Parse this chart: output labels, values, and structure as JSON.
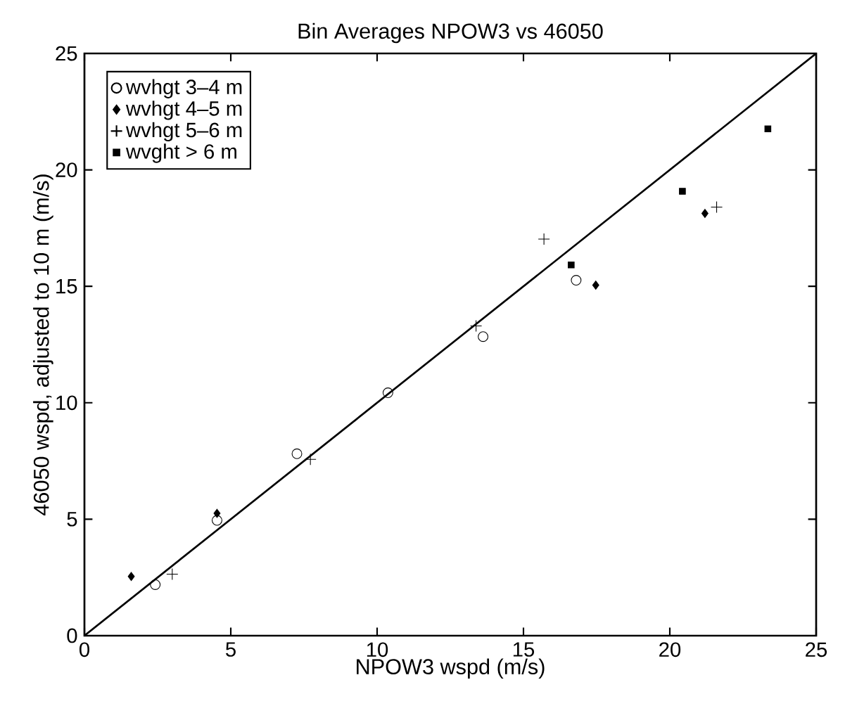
{
  "chart_data": {
    "type": "scatter",
    "title": "Bin Averages NPOW3 vs 46050",
    "xlabel": "NPOW3 wspd (m/s)",
    "ylabel": "46050 wspd, adjusted to 10 m (m/s)",
    "xlim": [
      0,
      25
    ],
    "ylim": [
      0,
      25
    ],
    "xticks": [
      0,
      5,
      10,
      15,
      20,
      25
    ],
    "yticks": [
      0,
      5,
      10,
      15,
      20,
      25
    ],
    "legend": "top left",
    "grid": false,
    "series": [
      {
        "name": "wvhgt 3–4 m",
        "color": "#000000",
        "marker": "circle",
        "x": [
          2.42,
          4.53,
          7.26,
          10.37,
          13.62,
          16.8
        ],
        "values": [
          2.19,
          4.95,
          7.81,
          10.43,
          12.84,
          15.26
        ]
      },
      {
        "name": "wvhgt 4–5 m",
        "color": "#000000",
        "marker": "diamond",
        "x": [
          1.6,
          4.53,
          17.47,
          21.2
        ],
        "values": [
          2.54,
          5.25,
          15.05,
          18.13
        ]
      },
      {
        "name": "wvhgt 5–6 m",
        "color": "#000000",
        "marker": "cross",
        "x": [
          3.0,
          7.72,
          13.38,
          15.7,
          21.6
        ],
        "values": [
          2.64,
          7.57,
          13.3,
          17.03,
          18.4
        ]
      },
      {
        "name": "wvght > 6 m",
        "color": "#000000",
        "marker": "square",
        "x": [
          16.63,
          20.43,
          23.35
        ],
        "values": [
          15.92,
          19.08,
          21.76
        ]
      },
      {
        "type": "line",
        "color": "#000000",
        "line_style": "solid",
        "marker": "none",
        "x": [
          0,
          25
        ],
        "values": [
          0,
          25
        ]
      }
    ]
  }
}
